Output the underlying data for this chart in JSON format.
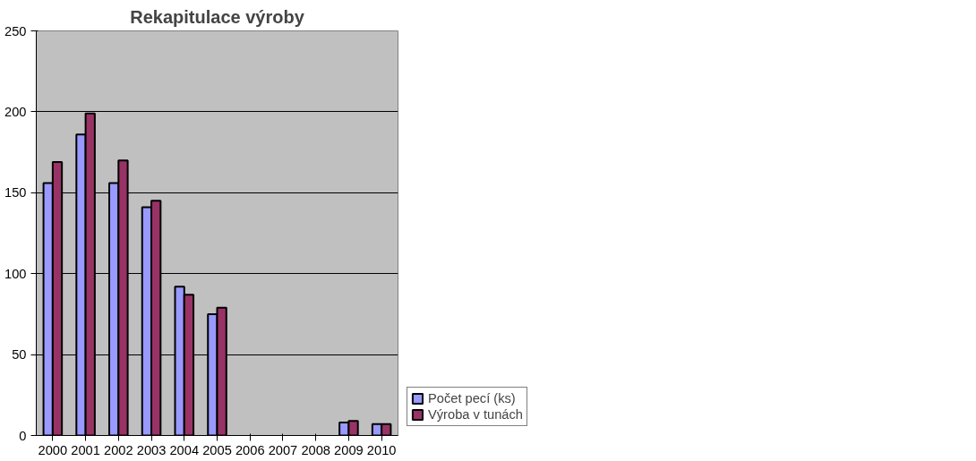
{
  "chart_data": {
    "type": "bar",
    "title": "Rekapitulace výroby",
    "categories": [
      "2000",
      "2001",
      "2002",
      "2003",
      "2004",
      "2005",
      "2006",
      "2007",
      "2008",
      "2009",
      "2010"
    ],
    "series": [
      {
        "name": "Počet pecí (ks)",
        "color": "#9999ff",
        "values": [
          156,
          186,
          156,
          141,
          92,
          75,
          null,
          null,
          null,
          8,
          7
        ]
      },
      {
        "name": "Výroba v tunách",
        "color": "#993366",
        "values": [
          169,
          199,
          170,
          145,
          87,
          79,
          null,
          null,
          null,
          9,
          7
        ]
      }
    ],
    "ylim": [
      0,
      250
    ],
    "yticks": [
      0,
      50,
      100,
      150,
      200,
      250
    ],
    "grid": "y",
    "legend": "right"
  }
}
